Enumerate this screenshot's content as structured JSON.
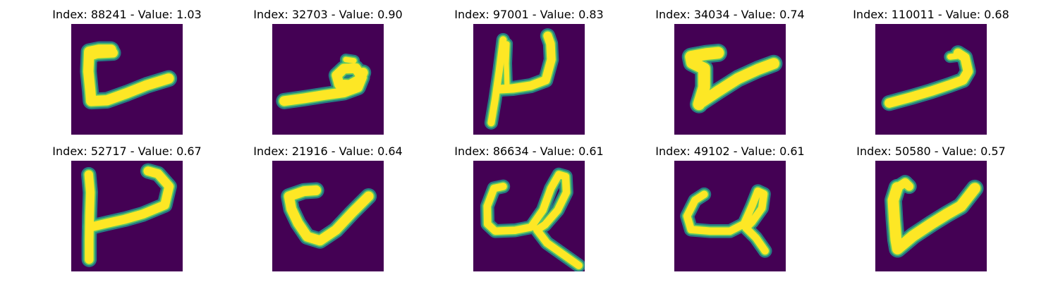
{
  "colors": {
    "background": "#440154",
    "stroke_outer": "#21918c",
    "stroke_mid": "#5ec962",
    "stroke_core": "#fde725"
  },
  "panels": [
    {
      "title": "Index: 88241 - Value: 1.03",
      "index": 88241,
      "value": 1.03
    },
    {
      "title": "Index: 32703 - Value: 0.90",
      "index": 32703,
      "value": 0.9
    },
    {
      "title": "Index: 97001 - Value: 0.83",
      "index": 97001,
      "value": 0.83
    },
    {
      "title": "Index: 34034 - Value: 0.74",
      "index": 34034,
      "value": 0.74
    },
    {
      "title": "Index: 110011 - Value: 0.68",
      "index": 110011,
      "value": 0.68
    },
    {
      "title": "Index: 52717 - Value: 0.67",
      "index": 52717,
      "value": 0.67
    },
    {
      "title": "Index: 21916 - Value: 0.64",
      "index": 21916,
      "value": 0.64
    },
    {
      "title": "Index: 86634 - Value: 0.61",
      "index": 86634,
      "value": 0.61
    },
    {
      "title": "Index: 49102 - Value: 0.61",
      "index": 49102,
      "value": 0.61
    },
    {
      "title": "Index: 50580 - Value: 0.57",
      "index": 50580,
      "value": 0.57
    }
  ]
}
